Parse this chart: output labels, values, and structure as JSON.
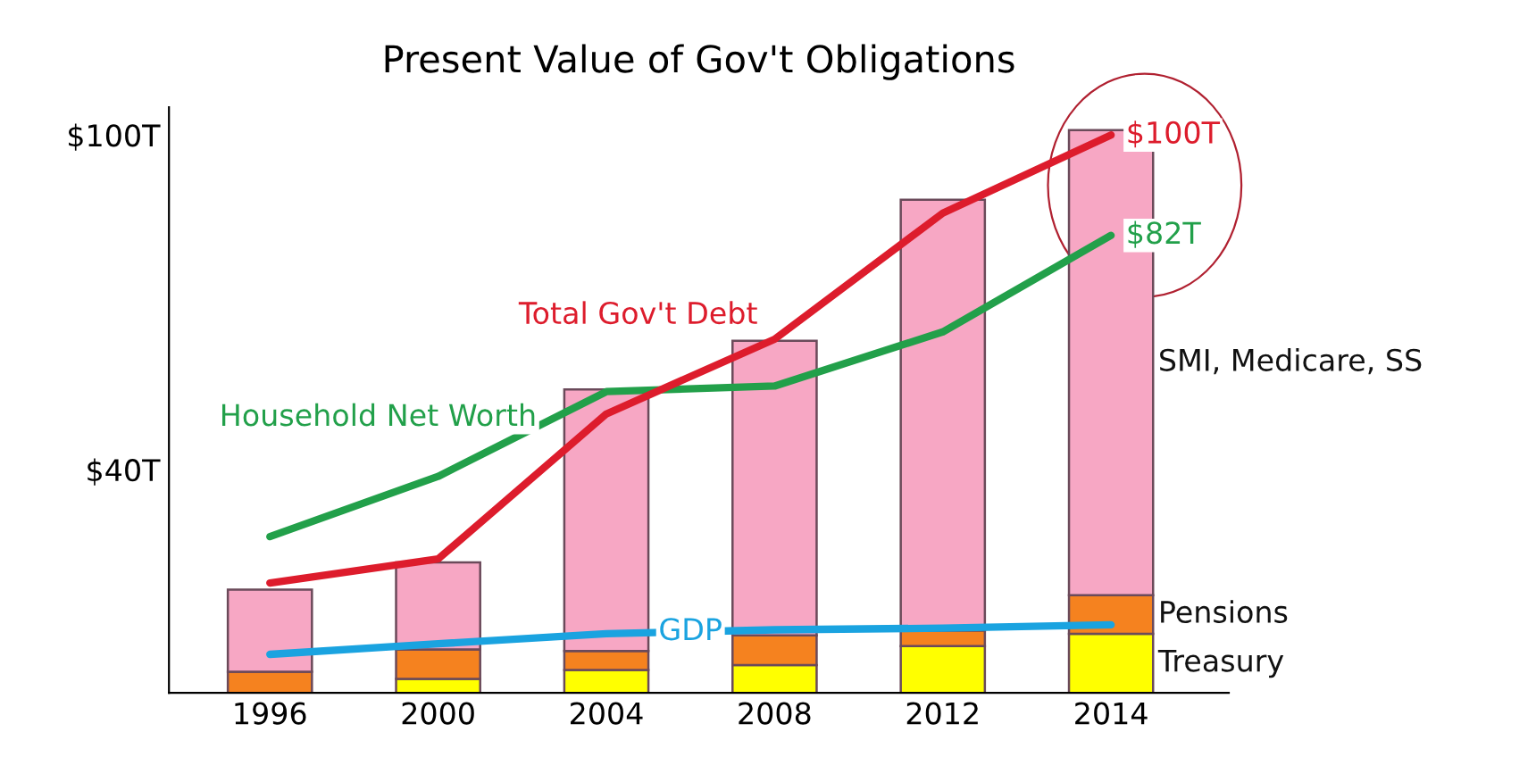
{
  "chart_data": {
    "type": "bar",
    "title": "Present Value of Gov't Obligations",
    "categories": [
      "1996",
      "2000",
      "2004",
      "2008",
      "2012",
      "2014"
    ],
    "stacked": true,
    "ylim": [
      0,
      105
    ],
    "yticks": [
      {
        "value": 40,
        "label": "$40T"
      },
      {
        "value": 100,
        "label": "$100T"
      }
    ],
    "grid": false,
    "legend": false,
    "series": [
      {
        "name": "Treasury",
        "type": "bar",
        "color": "#ffff00",
        "values": [
          0,
          2.5,
          4.1,
          5,
          8.4,
          10.6
        ]
      },
      {
        "name": "Pensions",
        "type": "bar",
        "color": "#f5821f",
        "values": [
          3.8,
          5.3,
          3.4,
          5.3,
          2.8,
          6.9
        ]
      },
      {
        "name": "SMI, Medicare, SS",
        "type": "bar",
        "color": "#f7a7c4",
        "values": [
          14.7,
          15.6,
          46.9,
          52.8,
          77.2,
          83.4
        ]
      },
      {
        "name": "Household Net Worth",
        "type": "line",
        "color": "#22a04a",
        "values": [
          28,
          38.8,
          54,
          55,
          64.7,
          82
        ]
      },
      {
        "name": "Total Gov't Debt",
        "type": "line",
        "color": "#dd1c2c",
        "values": [
          19.7,
          24,
          50,
          63.4,
          86,
          100
        ]
      },
      {
        "name": "GDP",
        "type": "line",
        "color": "#1aa3e0",
        "values": [
          6.9,
          8.8,
          10.6,
          11.3,
          11.6,
          12.2
        ]
      }
    ],
    "annotations": [
      {
        "text": "$100T",
        "x": "2014",
        "y": 100
      },
      {
        "text": "$82T",
        "x": "2014",
        "y": 82
      }
    ]
  }
}
